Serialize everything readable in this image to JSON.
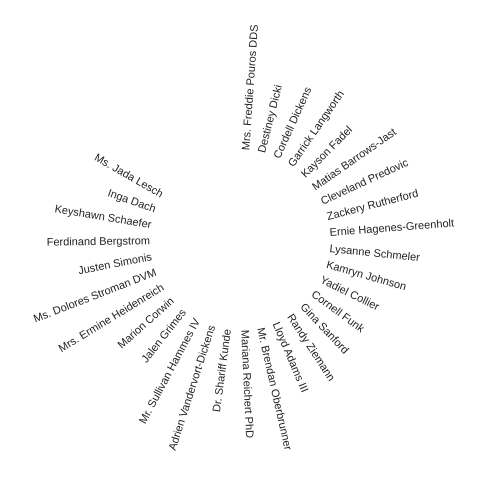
{
  "diagram": {
    "text_color": "#222222",
    "background": "#ffffff",
    "names": [
      "Mrs. Freddie Pouros DDS",
      "Destiney Dicki",
      "Cordell Dickens",
      "Garrick Langworth",
      "Kayson Fadel",
      "Matias Barrows-Jast",
      "Cleveland Predovic",
      "Zackery Rutherford",
      "Ernie Hagenes-Greenholt",
      "Lysanne Schmeler",
      "Kamryn Johnson",
      "Yadiel Collier",
      "Cornell Funk",
      "Gina Sanford",
      "Randy Ziemann",
      "Lloyd Adams III",
      "Mr. Brendan Oberbrunner",
      "Mariana Reichert PhD",
      "Dr. Shariff Kunde",
      "Adrien Vandervort-Dickens",
      "Mr. Sullivan Hammes IV",
      "Jalen Grimes",
      "Marion Corwin",
      "Mrs. Ermine Heidenreich",
      "Ms. Dolores Stroman DVM",
      "Justen Simonis",
      "Ferdinand Bergstrom",
      "Keyshawn Schaefer",
      "Inga Dach",
      "Ms. Jada Lesch"
    ]
  }
}
